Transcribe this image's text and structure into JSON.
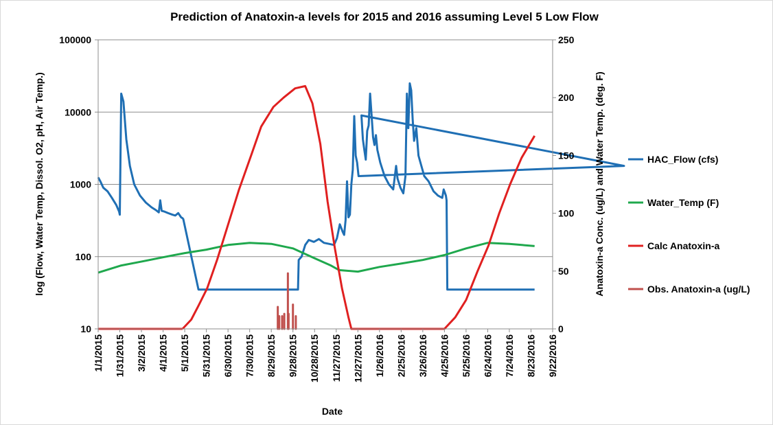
{
  "chart_data": {
    "type": "line",
    "title": "Prediction of Anatoxin-a levels for 2015 and 2016 assuming Level 5 Low Flow",
    "xlabel": "Date",
    "ylabel_left": "log (Flow, Water Temp, Dissol. O2, pH, Air Temp.)",
    "ylabel_right": "Anatoxin-a Conc. (ug/L) and Water Temp. (deg. F)",
    "y_left_scale": "log",
    "y_left_range": [
      10,
      100000
    ],
    "y_left_ticks": [
      "10",
      "100",
      "1000",
      "10000",
      "100000"
    ],
    "y_right_range": [
      0,
      250
    ],
    "y_right_ticks": [
      "0",
      "50",
      "100",
      "150",
      "200",
      "250"
    ],
    "x_range": [
      "1/1/2015",
      "9/22/2016"
    ],
    "x_ticks": [
      "1/1/2015",
      "1/31/2015",
      "3/2/2015",
      "4/1/2015",
      "5/1/2015",
      "5/31/2015",
      "6/30/2015",
      "7/30/2015",
      "8/29/2015",
      "9/28/2015",
      "10/28/2015",
      "11/27/2015",
      "12/27/2015",
      "1/26/2016",
      "2/25/2016",
      "3/26/2016",
      "4/25/2016",
      "5/25/2016",
      "6/24/2016",
      "7/24/2016",
      "8/23/2016",
      "9/22/2016"
    ],
    "grid": "horizontal major lines",
    "legend_position": "right",
    "series": [
      {
        "name": "HAC_Flow (cfs)",
        "color": "#1f6fb4",
        "axis": "left",
        "x": [
          "1/1/2015",
          "1/4/2015",
          "1/8/2015",
          "1/14/2015",
          "1/20/2015",
          "1/26/2015",
          "1/30/2015",
          "1/31/2015",
          "2/2/2015",
          "2/5/2015",
          "2/9/2015",
          "2/14/2015",
          "2/20/2015",
          "2/28/2015",
          "3/8/2015",
          "3/16/2015",
          "3/22/2015",
          "3/26/2015",
          "3/28/2015",
          "3/30/2015",
          "4/3/2015",
          "4/8/2015",
          "4/14/2015",
          "4/18/2015",
          "4/22/2015",
          "4/26/2015",
          "4/28/2015",
          "4/29/2015",
          "5/20/2015",
          "7/1/2015",
          "8/15/2015",
          "9/20/2015",
          "10/5/2015",
          "10/6/2015",
          "10/10/2015",
          "10/15/2015",
          "10/20/2015",
          "10/27/2015",
          "11/3/2015",
          "11/10/2015",
          "11/17/2015",
          "11/24/2015",
          "11/28/2015",
          "12/2/2015",
          "12/6/2015",
          "12/8/2015",
          "12/10/2015",
          "12/12/2015",
          "12/14/2015",
          "12/16/2015",
          "12/18/2015",
          "12/20/2015",
          "12/22/2015",
          "12/24/2015",
          "12/26/2015",
          "12/28/2015",
          "12/30/2016",
          "1/1/2016",
          "1/3/2016",
          "1/5/2016",
          "1/7/2016",
          "1/9/2016",
          "1/11/2016",
          "1/13/2016",
          "1/15/2016",
          "1/17/2016",
          "1/19/2016",
          "1/21/2016",
          "1/23/2016",
          "1/27/2016",
          "2/2/2016",
          "2/8/2016",
          "2/14/2016",
          "2/18/2016",
          "2/20/2016",
          "2/24/2016",
          "2/28/2016",
          "3/2/2016",
          "3/4/2016",
          "3/6/2016",
          "3/8/2016",
          "3/10/2016",
          "3/12/2016",
          "3/14/2016",
          "3/17/2016",
          "3/20/2016",
          "3/24/2016",
          "3/28/2016",
          "4/3/2016",
          "4/10/2016",
          "4/16/2016",
          "4/22/2016",
          "4/24/2016",
          "4/27/2016",
          "4/28/2016",
          "4/29/2016",
          "5/20/2016",
          "7/1/2016",
          "8/1/2016",
          "8/28/2016"
        ],
        "values": [
          1250,
          1100,
          900,
          800,
          650,
          520,
          420,
          380,
          18000,
          14000,
          4200,
          1800,
          1000,
          700,
          560,
          480,
          440,
          410,
          600,
          430,
          420,
          400,
          380,
          370,
          400,
          350,
          340,
          330,
          35,
          35,
          35,
          35,
          35,
          90,
          100,
          145,
          170,
          160,
          175,
          155,
          150,
          145,
          180,
          280,
          220,
          200,
          320,
          1100,
          350,
          380,
          1000,
          1600,
          8800,
          2500,
          2000,
          1300,
          1800,
          9000,
          4200,
          3000,
          2200,
          5500,
          6500,
          18000,
          9000,
          4500,
          3500,
          4800,
          3000,
          2000,
          1300,
          1000,
          850,
          1800,
          1200,
          900,
          750,
          1300,
          18000,
          6000,
          25000,
          20000,
          8000,
          4000,
          6000,
          2500,
          1800,
          1300,
          1100,
          800,
          700,
          650,
          850,
          700,
          600,
          35,
          35,
          35,
          35,
          35
        ]
      },
      {
        "name": "Water_Temp (F)",
        "color": "#1fa84d",
        "axis": "left",
        "x": [
          "1/1/2015",
          "2/1/2015",
          "3/1/2015",
          "4/1/2015",
          "5/1/2015",
          "5/31/2015",
          "6/30/2015",
          "7/30/2015",
          "8/29/2015",
          "9/28/2015",
          "10/28/2015",
          "11/20/2015",
          "12/1/2015",
          "12/27/2015",
          "1/26/2016",
          "2/25/2016",
          "3/26/2016",
          "4/25/2016",
          "5/25/2016",
          "6/24/2016",
          "7/24/2016",
          "8/28/2016"
        ],
        "values": [
          60,
          75,
          85,
          98,
          112,
          125,
          145,
          155,
          150,
          130,
          95,
          75,
          65,
          62,
          72,
          80,
          90,
          105,
          130,
          155,
          150,
          140
        ]
      },
      {
        "name": "Calc Anatoxin-a",
        "color": "#e02020",
        "axis": "right",
        "x": [
          "4/28/2015",
          "5/10/2015",
          "5/20/2015",
          "6/1/2015",
          "6/15/2015",
          "7/1/2015",
          "7/15/2015",
          "8/1/2015",
          "8/15/2015",
          "9/1/2015",
          "9/15/2015",
          "10/1/2015",
          "10/15/2015",
          "10/25/2015",
          "11/5/2015",
          "11/15/2015",
          "11/25/2015",
          "12/5/2015",
          "12/14/2015",
          "12/18/2015",
          "4/25/2016",
          "5/10/2016",
          "5/25/2016",
          "6/10/2016",
          "6/25/2016",
          "7/10/2016",
          "7/25/2016",
          "8/10/2016",
          "8/28/2016"
        ],
        "values": [
          0,
          8,
          20,
          35,
          60,
          92,
          120,
          150,
          175,
          192,
          200,
          208,
          210,
          195,
          160,
          110,
          70,
          35,
          10,
          0,
          0,
          10,
          25,
          50,
          72,
          100,
          125,
          148,
          167
        ]
      },
      {
        "name": "Obs. Anatoxin-a (ug/L)",
        "color": "#c0504d",
        "axis": "right",
        "x": [
          "9/7/2015",
          "9/9/2015",
          "9/13/2015",
          "9/16/2015",
          "9/21/2015",
          "9/22/2015",
          "9/28/2015",
          "10/2/2015"
        ],
        "values": [
          19,
          11,
          11,
          13,
          48,
          13,
          21,
          11
        ]
      }
    ]
  }
}
